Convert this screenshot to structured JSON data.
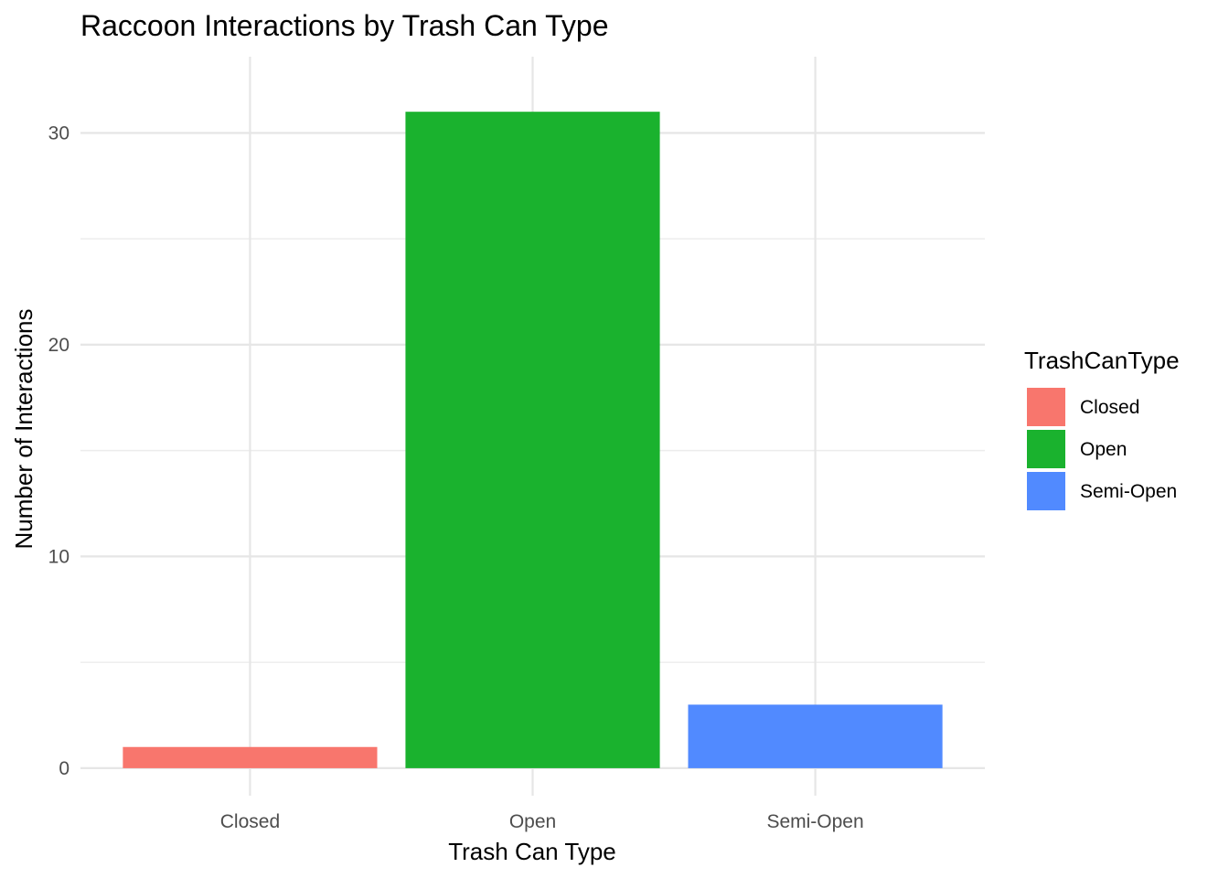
{
  "chart_data": {
    "type": "bar",
    "title": "Raccoon Interactions by Trash Can Type",
    "xlabel": "Trash Can Type",
    "ylabel": "Number of Interactions",
    "categories": [
      "Closed",
      "Open",
      "Semi-Open"
    ],
    "values": [
      1,
      31,
      3
    ],
    "colors": [
      "#F8766D",
      "#1AB22E",
      "#518AFF"
    ],
    "ylim": [
      -1.3,
      33.6
    ],
    "yticks": [
      0,
      10,
      20,
      30
    ],
    "ytick_labels": [
      "0",
      "10",
      "20",
      "30"
    ],
    "grid": true,
    "legend": {
      "title": "TrashCanType",
      "placement": "right",
      "entries": [
        "Closed",
        "Open",
        "Semi-Open"
      ]
    }
  }
}
